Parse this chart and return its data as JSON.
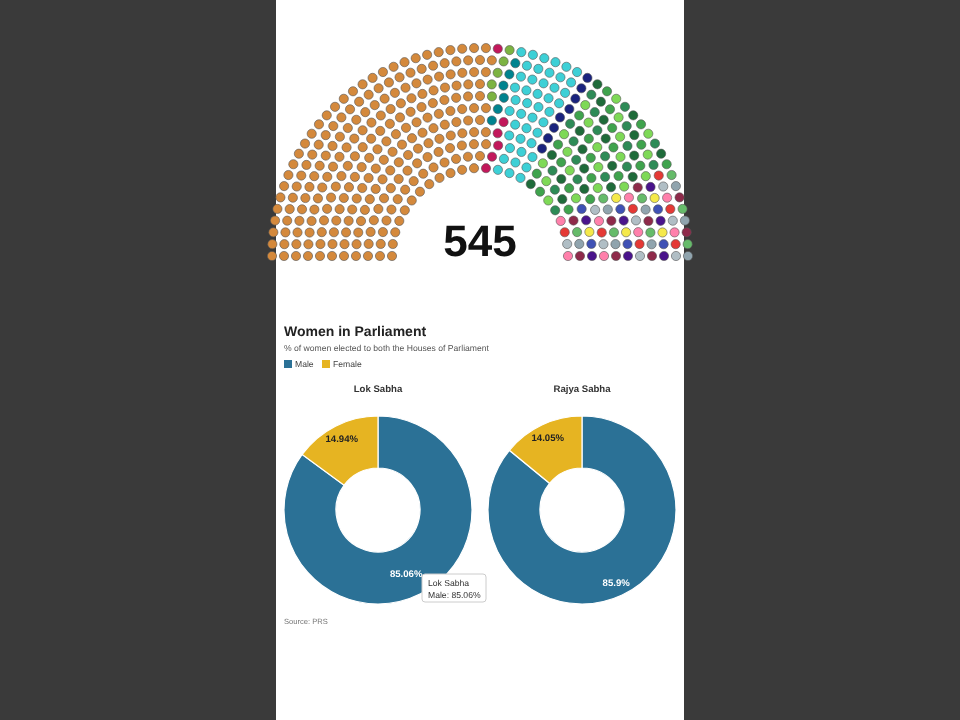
{
  "chart_data": [
    {
      "type": "other",
      "annotations": [
        "545"
      ]
    },
    {
      "type": "donut",
      "title": "Women in Parliament",
      "subtitle": "% of women elected to both the Houses of Parliament",
      "legend": "top left",
      "xlabel": "Lok Sabha",
      "categories": [
        "Male",
        "Female"
      ],
      "values": [
        85.06,
        14.94
      ],
      "colors": [
        "#2b7196",
        "#e6b422"
      ],
      "value_labels": [
        "85.06%",
        "14.94%"
      ],
      "annotations": [
        "Lok Sabha",
        "Male: 85.06%",
        "Source: PRS"
      ]
    },
    {
      "type": "donut",
      "xlabel": "Rajya Sabha",
      "categories": [
        null,
        null
      ],
      "values": [
        85.95,
        14.05
      ],
      "colors": [
        "#2b7196",
        "#e6b422"
      ],
      "value_labels": [
        "85.9%",
        "14.05%"
      ]
    }
  ]
}
